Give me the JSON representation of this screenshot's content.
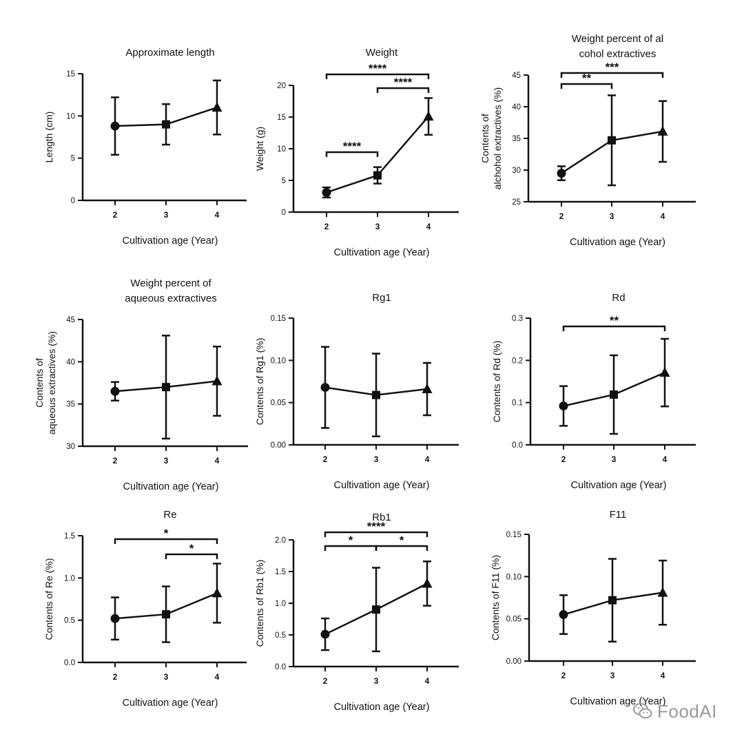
{
  "watermark": {
    "text": "FoodAI",
    "icon": "wechat-icon"
  },
  "chart_data": [
    {
      "type": "line",
      "title": "Approximate length",
      "xlabel": "Cultivation age (Year)",
      "ylabel": "Length (cm)",
      "categories": [
        "2",
        "3",
        "4"
      ],
      "markers": [
        "circle",
        "square",
        "triangle"
      ],
      "values": [
        8.8,
        9.0,
        11.0
      ],
      "errors": [
        3.4,
        2.4,
        3.2
      ],
      "ylim": [
        0,
        15
      ],
      "yticks": [
        "0",
        "5",
        "10",
        "15"
      ],
      "significance": []
    },
    {
      "type": "line",
      "title": "Weight",
      "xlabel": "Cultivation age (Year)",
      "ylabel": "Weight (g)",
      "categories": [
        "2",
        "3",
        "4"
      ],
      "markers": [
        "circle",
        "square",
        "triangle"
      ],
      "values": [
        3.1,
        5.8,
        15.1
      ],
      "errors": [
        0.8,
        1.3,
        2.9
      ],
      "ylim": [
        0,
        20
      ],
      "yticks": [
        "0",
        "5",
        "10",
        "15",
        "20"
      ],
      "significance": [
        {
          "from": 0,
          "to": 1,
          "label": "****"
        },
        {
          "from": 1,
          "to": 2,
          "label": "****"
        },
        {
          "from": 0,
          "to": 2,
          "label": "****"
        }
      ]
    },
    {
      "type": "line",
      "title": "Weight percent of alcohol extractives",
      "xlabel": "Cultivation age (Year)",
      "ylabel": "Contents of alchohol extractives (%)",
      "categories": [
        "2",
        "3",
        "4"
      ],
      "markers": [
        "circle",
        "square",
        "triangle"
      ],
      "values": [
        29.5,
        34.7,
        36.1
      ],
      "errors": [
        1.1,
        7.1,
        4.8
      ],
      "ylim": [
        25,
        45
      ],
      "yticks": [
        "25",
        "30",
        "35",
        "40",
        "45"
      ],
      "significance": [
        {
          "from": 0,
          "to": 1,
          "label": "**"
        },
        {
          "from": 0,
          "to": 2,
          "label": "***"
        }
      ]
    },
    {
      "type": "line",
      "title": "Weight percent of aqueous extractives",
      "xlabel": "Cultivation age (Year)",
      "ylabel": "Contents of aqueous extractives (%)",
      "categories": [
        "2",
        "3",
        "4"
      ],
      "markers": [
        "circle",
        "square",
        "triangle"
      ],
      "values": [
        36.5,
        37.0,
        37.7
      ],
      "errors": [
        1.1,
        6.1,
        4.1
      ],
      "ylim": [
        30,
        45
      ],
      "yticks": [
        "30",
        "35",
        "40",
        "45"
      ],
      "significance": []
    },
    {
      "type": "line",
      "title": "Rg1",
      "xlabel": "Cultivation age (Year)",
      "ylabel": "Contents of Rg1 (%)",
      "categories": [
        "2",
        "3",
        "4"
      ],
      "markers": [
        "circle",
        "square",
        "triangle"
      ],
      "values": [
        0.068,
        0.059,
        0.066
      ],
      "errors": [
        0.048,
        0.049,
        0.031
      ],
      "ylim": [
        0,
        0.15
      ],
      "yticks": [
        "0.00",
        "0.05",
        "0.10",
        "0.15"
      ],
      "significance": []
    },
    {
      "type": "line",
      "title": "Rd",
      "xlabel": "Cultivation age (Year)",
      "ylabel": "Contents of Rd (%)",
      "categories": [
        "2",
        "3",
        "4"
      ],
      "markers": [
        "circle",
        "square",
        "triangle"
      ],
      "values": [
        0.092,
        0.119,
        0.171
      ],
      "errors": [
        0.047,
        0.093,
        0.08
      ],
      "ylim": [
        0,
        0.3
      ],
      "yticks": [
        "0.0",
        "0.1",
        "0.2",
        "0.3"
      ],
      "significance": [
        {
          "from": 0,
          "to": 2,
          "label": "**"
        }
      ]
    },
    {
      "type": "line",
      "title": "Re",
      "xlabel": "Cultivation age (Year)",
      "ylabel": "Contents of Re (%)",
      "categories": [
        "2",
        "3",
        "4"
      ],
      "markers": [
        "circle",
        "square",
        "triangle"
      ],
      "values": [
        0.52,
        0.57,
        0.82
      ],
      "errors": [
        0.25,
        0.33,
        0.35
      ],
      "ylim": [
        0,
        1.5
      ],
      "yticks": [
        "0.0",
        "0.5",
        "1.0",
        "1.5"
      ],
      "significance": [
        {
          "from": 1,
          "to": 2,
          "label": "*"
        },
        {
          "from": 0,
          "to": 2,
          "label": "*"
        }
      ]
    },
    {
      "type": "line",
      "title": "Rb1",
      "xlabel": "Cultivation age (Year)",
      "ylabel": "Contents of Rb1 (%)",
      "categories": [
        "2",
        "3",
        "4"
      ],
      "markers": [
        "circle",
        "square",
        "triangle"
      ],
      "values": [
        0.51,
        0.9,
        1.31
      ],
      "errors": [
        0.25,
        0.66,
        0.35
      ],
      "ylim": [
        0,
        2.0
      ],
      "yticks": [
        "0.0",
        "0.5",
        "1.0",
        "1.5",
        "2.0"
      ],
      "significance": [
        {
          "from": 0,
          "to": 1,
          "label": "*"
        },
        {
          "from": 1,
          "to": 2,
          "label": "*"
        },
        {
          "from": 0,
          "to": 2,
          "label": "****"
        }
      ]
    },
    {
      "type": "line",
      "title": "F11",
      "xlabel": "Cultivation age (Year)",
      "ylabel": "Contents of F11 (%)",
      "categories": [
        "2",
        "3",
        "4"
      ],
      "markers": [
        "circle",
        "square",
        "triangle"
      ],
      "values": [
        0.055,
        0.072,
        0.081
      ],
      "errors": [
        0.023,
        0.049,
        0.038
      ],
      "ylim": [
        0,
        0.15
      ],
      "yticks": [
        "0.00",
        "0.05",
        "0.10",
        "0.15"
      ],
      "significance": []
    }
  ]
}
